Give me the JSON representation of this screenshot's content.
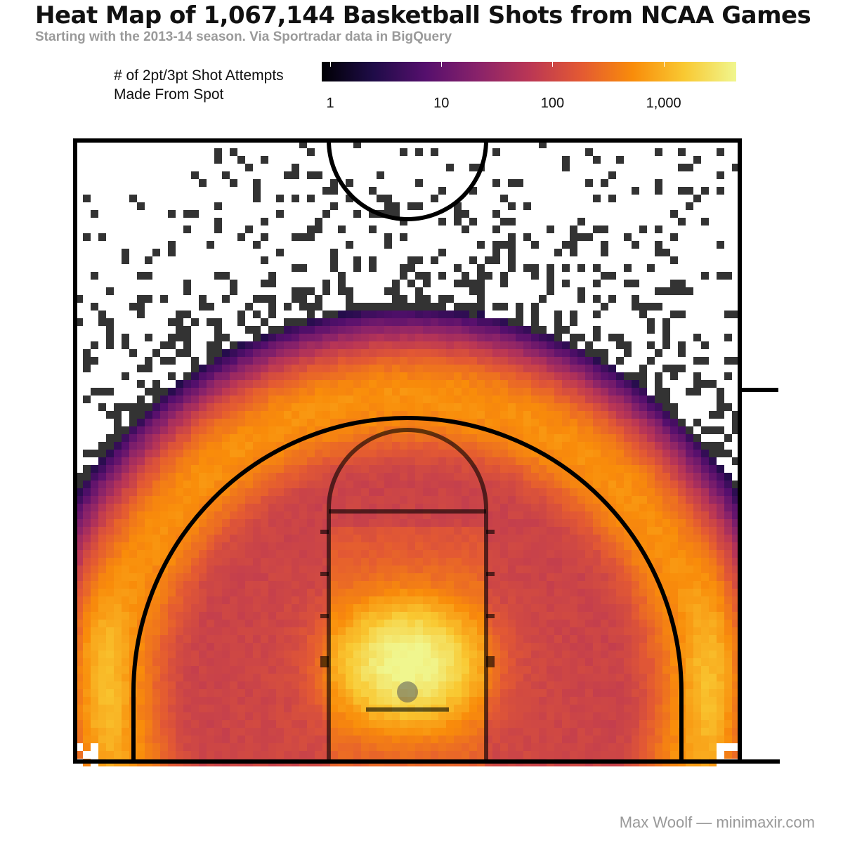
{
  "chart_data": {
    "type": "heatmap",
    "title": "Heat Map of 1,067,144 Basketball Shots from NCAA Games",
    "subtitle": "Starting with the 2013-14 season. Via Sportradar data in BigQuery",
    "legend": {
      "title_lines": [
        "# of 2pt/3pt Shot Attempts",
        "Made From Spot"
      ],
      "scale": "log10",
      "range": [
        1,
        4500
      ],
      "ticks": [
        {
          "value": 1,
          "label": "1"
        },
        {
          "value": 10,
          "label": "10"
        },
        {
          "value": 100,
          "label": "100"
        },
        {
          "value": 1000,
          "label": "1,000"
        }
      ],
      "colormap": [
        "#000004",
        "#1f0c48",
        "#550f6d",
        "#88226a",
        "#ba3655",
        "#e35933",
        "#f98c0a",
        "#f9c932",
        "#f0f68e"
      ],
      "position": "top"
    },
    "density_model": {
      "three_point_ring_peak": 600,
      "rim_peak": 4500,
      "corner_peak": 700,
      "inside_arc_level": 140,
      "sparse_level": 1
    },
    "grid": false
  },
  "credit": "Max Woolf — minimaxir.com",
  "colors": {
    "court_lines": "#000000",
    "background": "#ffffff"
  }
}
